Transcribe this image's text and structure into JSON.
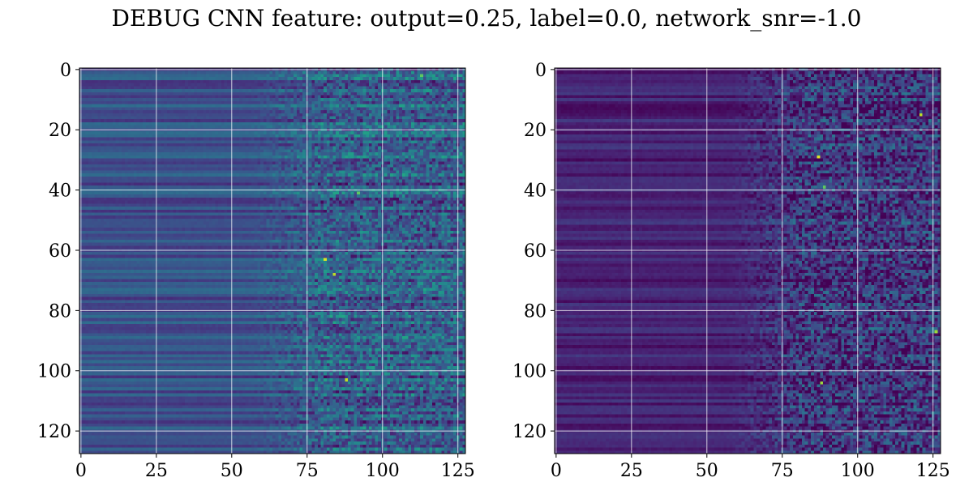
{
  "figure": {
    "title": "DEBUG CNN feature: output=0.25, label=0.0, network_snr=-1.0"
  },
  "chart_data": [
    {
      "type": "heatmap",
      "name": "left",
      "colormap": "viridis",
      "rows": 128,
      "cols": 128,
      "xlim": [
        0,
        127
      ],
      "ylim": [
        127,
        0
      ],
      "xticks": [
        0,
        25,
        50,
        75,
        100,
        125
      ],
      "yticks": [
        0,
        20,
        40,
        60,
        80,
        100,
        120
      ],
      "grid": true,
      "title": "",
      "xlabel": "",
      "ylabel": "",
      "style": {
        "base_level": 0.22,
        "noise_onset_col": 70,
        "noise_strength": 0.35,
        "smooth_band_amplitude": 0.22
      },
      "hotspots": [
        {
          "row": 63,
          "col": 81,
          "value": 0.95
        },
        {
          "row": 68,
          "col": 84,
          "value": 0.9
        },
        {
          "row": 103,
          "col": 88,
          "value": 0.9
        },
        {
          "row": 41,
          "col": 92,
          "value": 0.75
        },
        {
          "row": 2,
          "col": 113,
          "value": 0.75
        }
      ]
    },
    {
      "type": "heatmap",
      "name": "right",
      "colormap": "viridis",
      "rows": 128,
      "cols": 128,
      "xlim": [
        0,
        127
      ],
      "ylim": [
        127,
        0
      ],
      "xticks": [
        0,
        25,
        50,
        75,
        100,
        125
      ],
      "yticks": [
        0,
        20,
        40,
        60,
        80,
        100,
        120
      ],
      "grid": true,
      "title": "",
      "xlabel": "",
      "ylabel": "",
      "style": {
        "base_level": 0.08,
        "noise_onset_col": 72,
        "noise_strength": 0.4,
        "smooth_band_amplitude": 0.15
      },
      "hotspots": [
        {
          "row": 29,
          "col": 87,
          "value": 0.95
        },
        {
          "row": 15,
          "col": 121,
          "value": 0.9
        },
        {
          "row": 87,
          "col": 126,
          "value": 0.85
        },
        {
          "row": 104,
          "col": 88,
          "value": 0.85
        },
        {
          "row": 39,
          "col": 89,
          "value": 0.75
        }
      ]
    }
  ]
}
